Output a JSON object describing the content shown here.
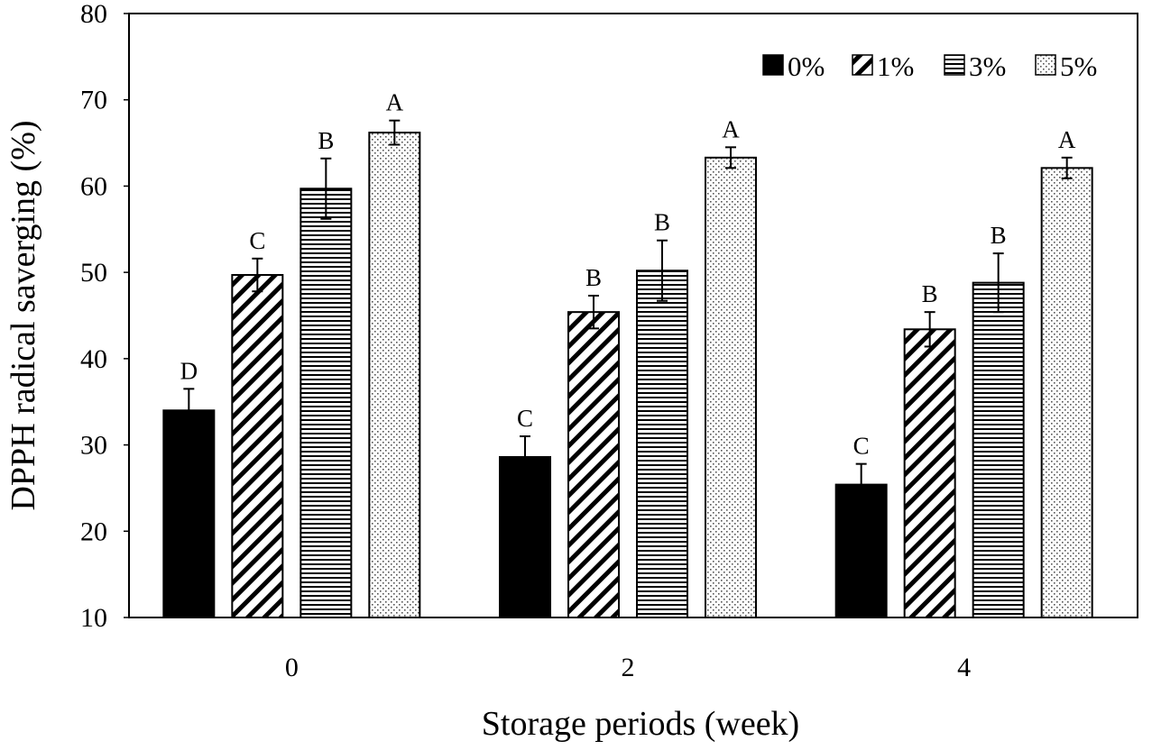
{
  "chart_data": {
    "type": "bar",
    "title": "",
    "xlabel": "Storage periods (week)",
    "ylabel": "DPPH radical saverging (%)",
    "ylim": [
      10,
      80
    ],
    "yticks": [
      "10",
      "20",
      "30",
      "40",
      "50",
      "60",
      "70",
      "80"
    ],
    "categories": [
      "0",
      "2",
      "4"
    ],
    "legend_position": "top-right",
    "series": [
      {
        "name": "0%",
        "pattern": "solid",
        "values": [
          34.0,
          28.6,
          25.4
        ],
        "errors": [
          2.5,
          2.4,
          2.4
        ],
        "letters": [
          "D",
          "C",
          "C"
        ]
      },
      {
        "name": "1%",
        "pattern": "diagonal",
        "values": [
          49.7,
          45.4,
          43.4
        ],
        "errors": [
          1.9,
          1.9,
          2.0
        ],
        "letters": [
          "C",
          "B",
          "B"
        ]
      },
      {
        "name": "3%",
        "pattern": "horizontal",
        "values": [
          59.7,
          50.2,
          48.8
        ],
        "errors": [
          3.5,
          3.5,
          3.4
        ],
        "letters": [
          "B",
          "B",
          "B"
        ]
      },
      {
        "name": "5%",
        "pattern": "dotted",
        "values": [
          66.2,
          63.3,
          62.1
        ],
        "errors": [
          1.4,
          1.2,
          1.2
        ],
        "letters": [
          "A",
          "A",
          "A"
        ]
      }
    ]
  }
}
